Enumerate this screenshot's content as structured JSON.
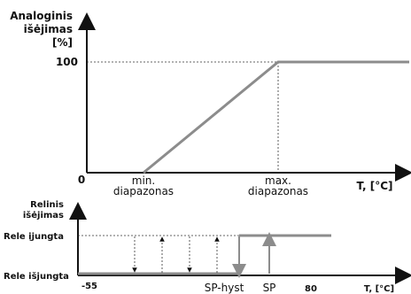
{
  "top_chart": {
    "ylabel_lines": [
      "Analoginis",
      "išėjimas",
      "[%]"
    ],
    "y_tick": "100",
    "origin": "0",
    "min_label_lines": [
      "min.",
      "diapazonas"
    ],
    "max_label_lines": [
      "max.",
      "diapazonas"
    ],
    "xlabel": "T, [°C]"
  },
  "bottom_chart": {
    "ylabel_lines": [
      "Relinis",
      "išėjimas"
    ],
    "on_label": "Rele įjungta",
    "off_label": "Rele išjungta",
    "x_start": "-55",
    "sp_hyst_label": "SP-hyst",
    "sp_label": "SP",
    "x_tick_80": "80",
    "xlabel": "T, [°C]"
  },
  "colors": {
    "axis": "#111111",
    "signal": "#8c8c8c",
    "guide": "#333333"
  }
}
